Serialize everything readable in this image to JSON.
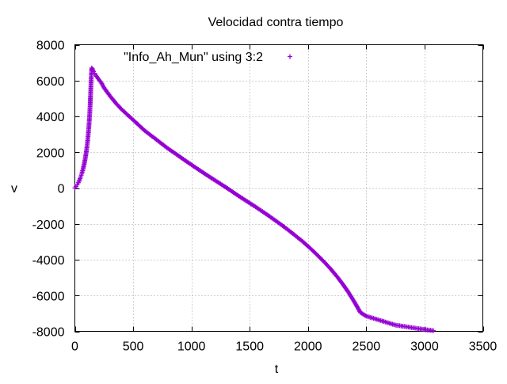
{
  "chart_data": {
    "type": "scatter",
    "title": "Velocidad contra tiempo",
    "xlabel": "t",
    "ylabel": "v",
    "xlim": [
      0,
      3500
    ],
    "ylim": [
      -8000,
      8000
    ],
    "xticks": [
      0,
      500,
      1000,
      1500,
      2000,
      2500,
      3000,
      3500
    ],
    "yticks": [
      -8000,
      -6000,
      -4000,
      -2000,
      0,
      2000,
      4000,
      6000,
      8000
    ],
    "grid": true,
    "legend_position": "top-left",
    "marker": "+",
    "series_color": "#9400d3",
    "series": [
      {
        "name": "\"Info_Ah_Mun\" using 3:2",
        "x": [
          0,
          10,
          20,
          30,
          40,
          50,
          60,
          70,
          80,
          90,
          100,
          110,
          120,
          128,
          135,
          140,
          145,
          150,
          160,
          170,
          180,
          200,
          225,
          250,
          300,
          350,
          400,
          450,
          500,
          550,
          600,
          650,
          700,
          750,
          800,
          850,
          900,
          950,
          1000,
          1050,
          1100,
          1150,
          1200,
          1250,
          1300,
          1350,
          1400,
          1450,
          1500,
          1550,
          1600,
          1650,
          1700,
          1750,
          1800,
          1850,
          1900,
          1950,
          2000,
          2050,
          2100,
          2150,
          2200,
          2250,
          2300,
          2350,
          2400,
          2450,
          2500,
          2550,
          2600,
          2650,
          2700,
          2750,
          2800,
          2850,
          2900,
          2950,
          3000,
          3025,
          3050,
          3075
        ],
        "y": [
          0,
          80,
          180,
          300,
          450,
          620,
          820,
          1050,
          1330,
          1680,
          2100,
          2650,
          3400,
          4200,
          5200,
          6100,
          6700,
          6650,
          6500,
          6400,
          6300,
          6100,
          5900,
          5600,
          5150,
          4750,
          4400,
          4100,
          3800,
          3500,
          3200,
          2950,
          2700,
          2450,
          2200,
          1980,
          1750,
          1520,
          1300,
          1080,
          860,
          650,
          440,
          230,
          20,
          -200,
          -420,
          -630,
          -840,
          -1050,
          -1270,
          -1490,
          -1720,
          -1950,
          -2190,
          -2440,
          -2700,
          -2960,
          -3250,
          -3550,
          -3870,
          -4200,
          -4560,
          -4950,
          -5380,
          -5850,
          -6380,
          -6950,
          -7150,
          -7250,
          -7350,
          -7450,
          -7550,
          -7650,
          -7700,
          -7750,
          -7800,
          -7850,
          -7900,
          -7920,
          -7940,
          -7960
        ]
      }
    ]
  }
}
